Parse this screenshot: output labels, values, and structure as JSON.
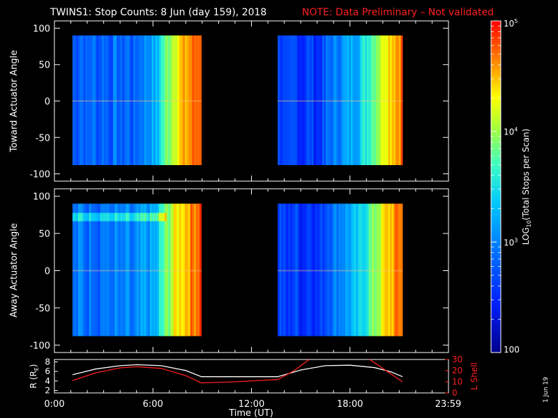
{
  "header": {
    "title": "TWINS1: Stop Counts:  8 Jun (day 159), 2018",
    "note": "NOTE: Data Preliminary – Not validated",
    "note_color": "#ff2020"
  },
  "side_stamp": "1 Jun 19",
  "chart_data": [
    {
      "type": "heatmap",
      "name": "toward",
      "ylabel": "Toward Actuator Angle",
      "ylim": [
        -110,
        110
      ],
      "yticks": [
        -100,
        -50,
        0,
        50,
        100
      ],
      "xlim": [
        0,
        24
      ],
      "data_blocks_hours": [
        [
          1.1,
          8.95
        ],
        [
          13.6,
          21.2
        ]
      ],
      "angle_range": [
        -88,
        90
      ]
    },
    {
      "type": "heatmap",
      "name": "away",
      "ylabel": "Away Actuator Angle",
      "ylim": [
        -110,
        110
      ],
      "yticks": [
        -100,
        -50,
        0,
        50,
        100
      ],
      "xlim": [
        0,
        24
      ],
      "data_blocks_hours": [
        [
          1.1,
          8.95
        ],
        [
          13.6,
          21.2
        ]
      ],
      "angle_range": [
        -88,
        90
      ]
    },
    {
      "type": "line",
      "name": "orbit",
      "xlabel": "Time (UT)",
      "xlim": [
        0,
        24
      ],
      "xticks": [
        "0:00",
        "6:00",
        "12:00",
        "18:00",
        "23:59"
      ],
      "left_axis": {
        "label": "R (R",
        "label_sub": "E",
        "label_close": ")",
        "ylim": [
          1.5,
          8.5
        ],
        "yticks": [
          2,
          4,
          6,
          8
        ],
        "color": "#ffffff"
      },
      "right_axis": {
        "label": "L Shell",
        "ylim": [
          0,
          30
        ],
        "yticks": [
          0,
          10,
          20,
          30
        ],
        "color": "#ff2020"
      },
      "series": [
        {
          "axis": "left",
          "color": "#ffffff",
          "x": [
            1.1,
            2.5,
            4.0,
            5.0,
            6.5,
            8.0,
            8.95,
            11.0,
            13.6,
            15.0,
            16.5,
            18.0,
            19.5,
            20.5,
            21.2
          ],
          "y": [
            5.3,
            6.5,
            7.2,
            7.4,
            7.2,
            6.2,
            4.9,
            4.9,
            4.9,
            6.3,
            7.2,
            7.3,
            6.8,
            5.9,
            4.9
          ]
        },
        {
          "axis": "right",
          "color": "#ff2020",
          "x": [
            1.1,
            2.5,
            4.0,
            5.0,
            6.5,
            8.0,
            8.95,
            11.0,
            13.6,
            14.6,
            15.7
          ],
          "y": [
            11,
            18,
            22.5,
            23.5,
            22,
            15.5,
            9,
            10,
            12,
            20,
            32
          ]
        },
        {
          "axis": "right",
          "color": "#ff2020",
          "x": [
            19.0,
            20.0,
            21.2
          ],
          "y": [
            32,
            22,
            10
          ]
        }
      ]
    }
  ],
  "colorbar": {
    "scale": "log",
    "min": 100,
    "max": 100000,
    "ticks": [
      {
        "value": 100,
        "label": "100"
      },
      {
        "value": 1000,
        "label": "10",
        "sup": "3"
      },
      {
        "value": 10000,
        "label": "10",
        "sup": "4"
      },
      {
        "value": 100000,
        "label": "10",
        "sup": "5"
      }
    ],
    "label_pre": "LOG",
    "label_sub": "10",
    "label_post": "(Total Stops per Scan)"
  }
}
